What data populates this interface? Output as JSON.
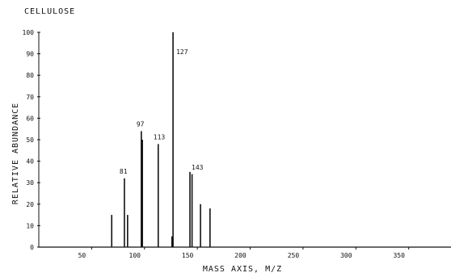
{
  "chart_data": {
    "type": "bar",
    "title": "CELLULOSE",
    "xlabel": "MASS AXIS, M/Z",
    "ylabel": "RELATIVE ABUNDANCE",
    "xlim": [
      0,
      390
    ],
    "ylim": [
      0,
      100
    ],
    "x_ticks": [
      50,
      100,
      150,
      200,
      250,
      300,
      350
    ],
    "y_ticks": [
      0,
      10,
      20,
      30,
      40,
      50,
      60,
      70,
      80,
      90,
      100
    ],
    "peaks": [
      {
        "mz": 69,
        "value": 15
      },
      {
        "mz": 81,
        "value": 32,
        "label": "81"
      },
      {
        "mz": 84,
        "value": 15
      },
      {
        "mz": 97,
        "value": 54,
        "label": "97"
      },
      {
        "mz": 98,
        "value": 50
      },
      {
        "mz": 113,
        "value": 48,
        "label": "113"
      },
      {
        "mz": 126,
        "value": 5
      },
      {
        "mz": 127,
        "value": 100,
        "label": "127"
      },
      {
        "mz": 143,
        "value": 35,
        "label": "143"
      },
      {
        "mz": 145,
        "value": 34
      },
      {
        "mz": 153,
        "value": 20
      },
      {
        "mz": 162,
        "value": 18
      }
    ]
  }
}
